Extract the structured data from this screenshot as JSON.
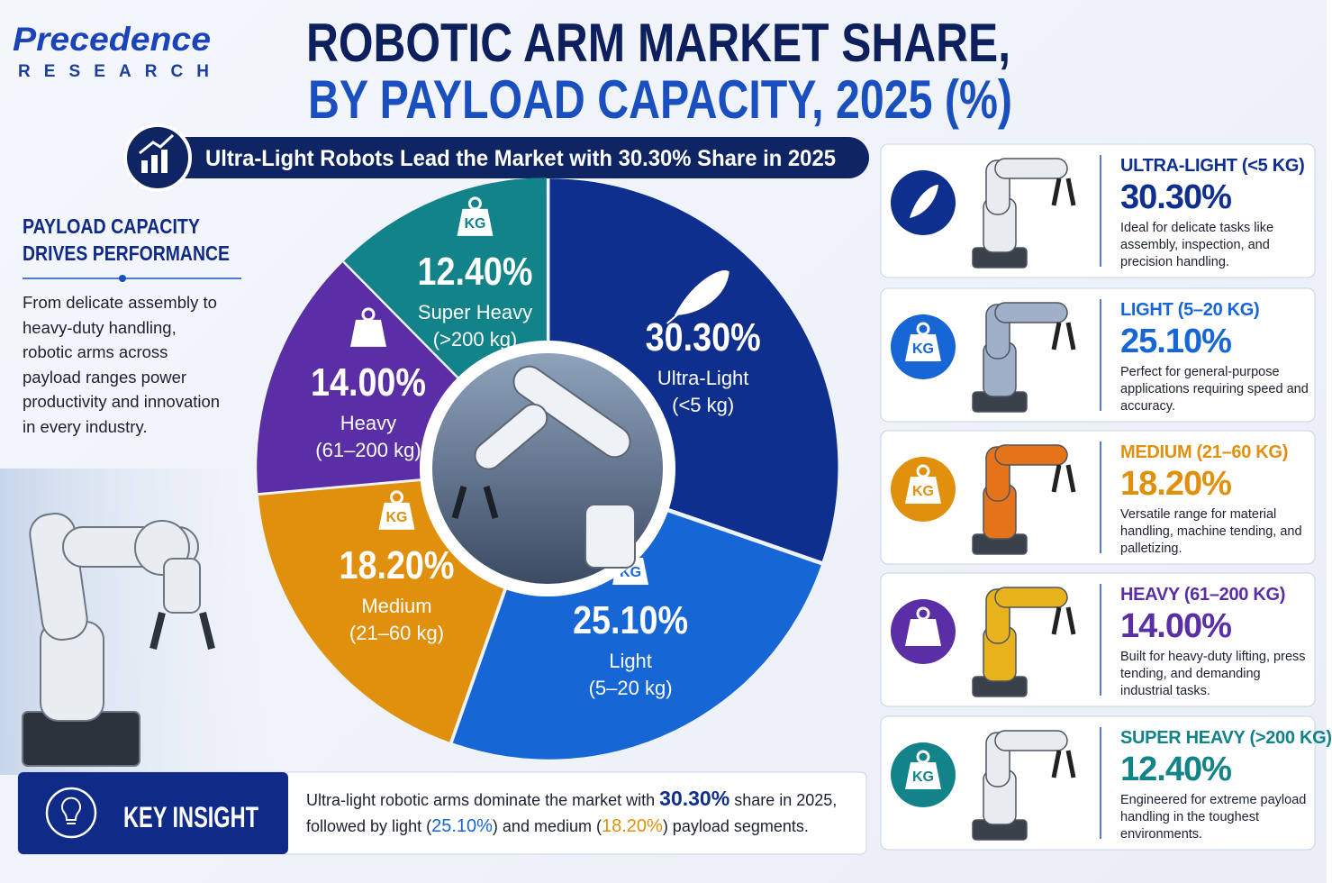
{
  "logo": {
    "name": "Precedence",
    "tagline": "RESEARCH"
  },
  "headline": "Ultra-Light Robots Lead the Market with 30.30% Share in 2025",
  "chart_data": {
    "type": "pie",
    "title": "ROBOTIC ARM MARKET SHARE,",
    "subtitle": "BY PAYLOAD CAPACITY, 2025 (%)",
    "categories": [
      "Ultra-Light",
      "Light",
      "Medium",
      "Heavy",
      "Super Heavy"
    ],
    "sublabels": [
      "(<5 kg)",
      "(5–20 kg)",
      "(21–60 kg)",
      "(61–200 kg)",
      "(>200 kg)"
    ],
    "values": [
      30.3,
      25.1,
      18.2,
      14.0,
      12.4
    ],
    "value_labels": [
      "30.30%",
      "25.10%",
      "18.20%",
      "14.00%",
      "12.40%"
    ],
    "colors": [
      "#0e2f8e",
      "#1766d6",
      "#e0900c",
      "#5a2ea5",
      "#13838a"
    ]
  },
  "kg_icon": "KG",
  "left_panel": {
    "heading": [
      "PAYLOAD CAPACITY",
      "DRIVES PERFORMANCE"
    ],
    "text": "From delicate assembly to heavy-duty handling, robotic arms across payload ranges power productivity and innovation in every industry."
  },
  "cards": [
    {
      "title": "ULTRA-LIGHT (<5 KG)",
      "description": "Ideal for delicate tasks like assembly, inspection, and precision handling."
    },
    {
      "title": "LIGHT (5–20 KG)",
      "description": "Perfect for general-purpose applications requiring speed and accuracy."
    },
    {
      "title": "MEDIUM (21–60 KG)",
      "description": "Versatile range for material handling, machine tending, and palletizing."
    },
    {
      "title": "HEAVY (61–200 KG)",
      "description": "Built for heavy-duty lifting, press tending, and demanding industrial tasks."
    },
    {
      "title": "SUPER HEAVY (>200 KG)",
      "description": "Engineered for extreme payload handling in the toughest environments."
    }
  ],
  "key_insight": {
    "title": "KEY INSIGHT",
    "parts": [
      "Ultra-light robotic arms dominate the market with",
      "share in 2025,",
      "followed by light (",
      ") and medium (",
      ") payload segments."
    ]
  }
}
